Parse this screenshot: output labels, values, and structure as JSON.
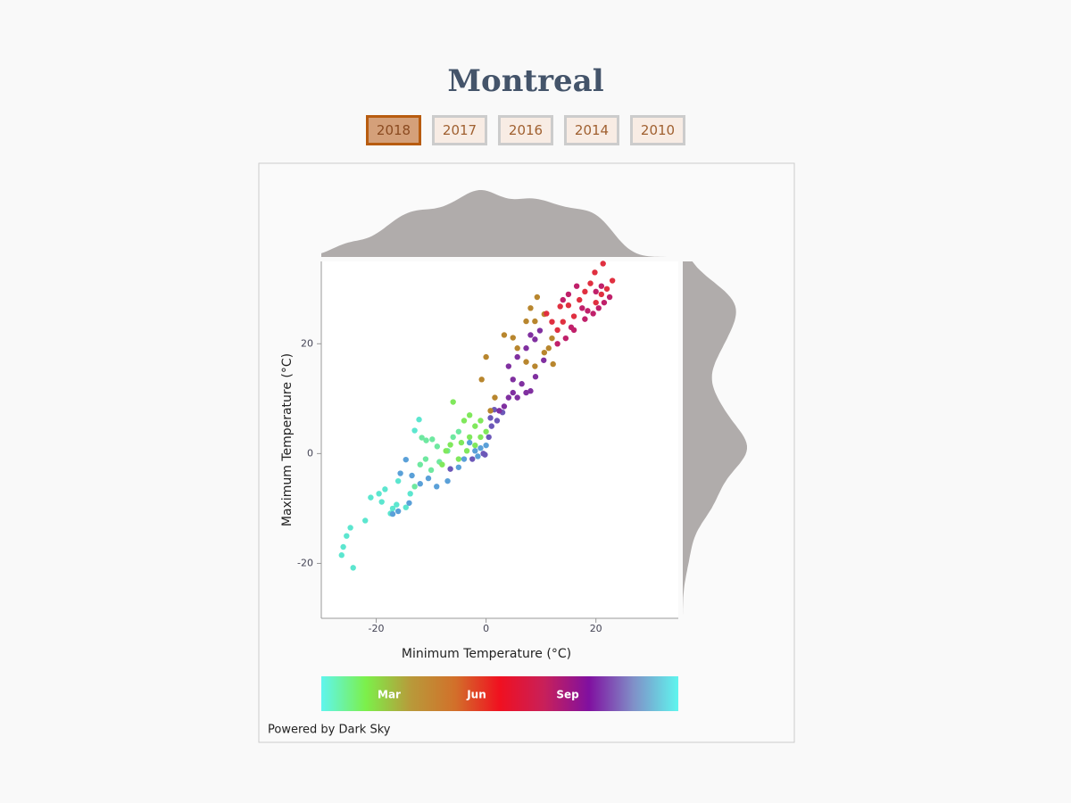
{
  "chart_data": {
    "type": "scatter",
    "title": "Montreal",
    "year_buttons": [
      "2018",
      "2017",
      "2016",
      "2014",
      "2010"
    ],
    "active_button": 0,
    "x_label": "Minimum Temperature (°C)",
    "y_label": "Maximum Temperature (°C)",
    "xlim": [
      -30,
      35
    ],
    "ylim": [
      -30,
      35
    ],
    "xticks": [
      -20,
      0,
      20
    ],
    "yticks": [
      -20,
      0,
      20
    ],
    "x": [
      -24.2,
      -26.3,
      -26,
      -25.4,
      -24.7,
      -22,
      -21,
      -19.5,
      -18.4,
      -19,
      -17.4,
      -17,
      -16.3,
      -14.6,
      -12.2,
      -13,
      -13.8,
      -16,
      -13,
      -11.7,
      -10.9,
      -9.8,
      -8.9,
      -12,
      -10,
      -8.5,
      -7,
      -6,
      -5,
      -11,
      -7.3,
      -6.5,
      -6,
      -4,
      -3,
      -2,
      -1,
      -4.5,
      -3,
      -2,
      -1,
      0,
      -5,
      -8,
      -3.5,
      -15.6,
      -14.6,
      -13.5,
      -12,
      -10.5,
      -9,
      -7,
      -5,
      -2,
      -1,
      0,
      -3,
      -1.5,
      -4,
      -14,
      -16,
      -17,
      -0.5,
      0.5,
      1,
      2,
      3,
      1.5,
      -2.5,
      -0.2,
      -6.5,
      0.8,
      2.4,
      3.3,
      4.1,
      4.9,
      5.7,
      6.5,
      7.3,
      8.1,
      4.9,
      4.1,
      5.7,
      7.3,
      8.9,
      9.8,
      8.1,
      9,
      10.5,
      0,
      -0.8,
      1.6,
      0.8,
      3.3,
      4.9,
      5.7,
      7.3,
      8.9,
      10.6,
      12.2,
      11.4,
      8.9,
      9.3,
      10.6,
      7.3,
      8.1,
      12,
      14,
      13,
      12,
      11,
      13.5,
      15,
      16,
      17,
      18,
      19,
      20,
      21,
      22,
      23,
      21.3,
      19.8,
      15,
      14,
      16.5,
      17.5,
      18.5,
      19.5,
      20.5,
      21.5,
      22.5,
      15.5,
      14.5,
      13,
      16,
      18,
      20,
      21
    ],
    "y": [
      -20.8,
      -18.5,
      -17,
      -15,
      -13.5,
      -12.2,
      -8,
      -7.3,
      -6.5,
      -8.8,
      -10.9,
      -10,
      -9.3,
      -9.8,
      6.2,
      4.2,
      -7.3,
      -5,
      -6,
      2.9,
      2.4,
      2.6,
      1.3,
      -2,
      -3,
      -1.5,
      0.5,
      3,
      4,
      -1,
      0.5,
      1.6,
      9.4,
      6,
      7,
      5,
      6,
      2,
      3,
      1.5,
      3,
      4,
      -1,
      -2,
      0.5,
      -3.6,
      -1.1,
      -4,
      -5.5,
      -4.5,
      -6,
      -5,
      -2.5,
      0.5,
      1,
      1.5,
      2,
      -0.5,
      -1,
      -9,
      -10.5,
      -11,
      0,
      3,
      5,
      6,
      7.5,
      8,
      -1,
      -0.2,
      -2.8,
      6.5,
      7.8,
      8.6,
      10.2,
      11.1,
      10.2,
      12.7,
      11.1,
      11.4,
      13.5,
      15.9,
      17.6,
      19.2,
      20.8,
      22.4,
      21.6,
      14,
      17,
      17.6,
      13.5,
      10.2,
      7.8,
      21.6,
      21.1,
      19.2,
      16.7,
      15.9,
      18.4,
      16.3,
      19.2,
      24.1,
      28.5,
      25.4,
      24.1,
      26.5,
      21,
      24,
      22.5,
      24,
      25.5,
      26.8,
      27,
      25,
      28,
      29.5,
      31,
      27.5,
      29,
      30,
      31.5,
      34.6,
      33,
      29,
      28,
      30.5,
      26.5,
      26,
      25.5,
      26.5,
      27.5,
      28.5,
      23,
      21,
      20,
      22.5,
      24.5,
      29.5,
      30.5
    ],
    "colors": [
      "#5ce6cf",
      "#5ce6cf",
      "#5ce6cf",
      "#5ce6cf",
      "#5ce6cf",
      "#5ce6cf",
      "#5ce6cf",
      "#5ce6cf",
      "#5ce6cf",
      "#5ce6cf",
      "#5ce6cf",
      "#5ce6cf",
      "#5ce6cf",
      "#5ce6cf",
      "#5ce6cf",
      "#5ce6cf",
      "#5ce6cf",
      "#5ce6cf",
      "#6ee8a0",
      "#6ee8a0",
      "#6ee8a0",
      "#6ee8a0",
      "#6ee8a0",
      "#6ee8a0",
      "#6ee8a0",
      "#6ee8a0",
      "#6ee8a0",
      "#6ee8a0",
      "#6ee8a0",
      "#6ee8a0",
      "#80e85c",
      "#80e85c",
      "#80e85c",
      "#80e85c",
      "#80e85c",
      "#80e85c",
      "#80e85c",
      "#80e85c",
      "#80e85c",
      "#80e85c",
      "#80e85c",
      "#80e85c",
      "#80e85c",
      "#80e85c",
      "#80e85c",
      "#5aa0d8",
      "#5aa0d8",
      "#5aa0d8",
      "#5aa0d8",
      "#5aa0d8",
      "#5aa0d8",
      "#5aa0d8",
      "#5aa0d8",
      "#5aa0d8",
      "#5aa0d8",
      "#5aa0d8",
      "#5aa0d8",
      "#5aa0d8",
      "#5aa0d8",
      "#5aa0d8",
      "#5aa0d8",
      "#5aa0d8",
      "#6c58b8",
      "#6c58b8",
      "#6c58b8",
      "#6c58b8",
      "#6c58b8",
      "#6c58b8",
      "#6c58b8",
      "#6c58b8",
      "#6c58b8",
      "#6c58b8",
      "#8030a0",
      "#8030a0",
      "#8030a0",
      "#8030a0",
      "#8030a0",
      "#8030a0",
      "#8030a0",
      "#8030a0",
      "#8030a0",
      "#8030a0",
      "#8030a0",
      "#8030a0",
      "#8030a0",
      "#8030a0",
      "#8030a0",
      "#8030a0",
      "#8030a0",
      "#b8862e",
      "#b8862e",
      "#b8862e",
      "#b8862e",
      "#b8862e",
      "#b8862e",
      "#b8862e",
      "#b8862e",
      "#b8862e",
      "#b8862e",
      "#b8862e",
      "#b8862e",
      "#b8862e",
      "#b8862e",
      "#b8862e",
      "#b8862e",
      "#b8862e",
      "#b8862e",
      "#e03040",
      "#e03040",
      "#e03040",
      "#e03040",
      "#e03040",
      "#e03040",
      "#e03040",
      "#e03040",
      "#e03040",
      "#e03040",
      "#e03040",
      "#e03040",
      "#e03040",
      "#e03040",
      "#e03040",
      "#e03040",
      "#c0206a",
      "#c0206a",
      "#c0206a",
      "#c0206a",
      "#c0206a",
      "#c0206a",
      "#c0206a",
      "#c0206a",
      "#c0206a",
      "#c0206a",
      "#c0206a",
      "#c0206a",
      "#c0206a",
      "#c0206a",
      "#c0206a",
      "#c0206a"
    ],
    "density_color": "#b0acab",
    "colorbar_colors": [
      "#5ff5ee",
      "#7cf04a",
      "#b89a3a",
      "#d2702a",
      "#f01020",
      "#c8205a",
      "#8010a0",
      "#8090c8",
      "#5ff5ee"
    ],
    "colorbar_labels": [
      "Mar",
      "Jun",
      "Sep"
    ],
    "footer": "Powered by Dark Sky"
  }
}
